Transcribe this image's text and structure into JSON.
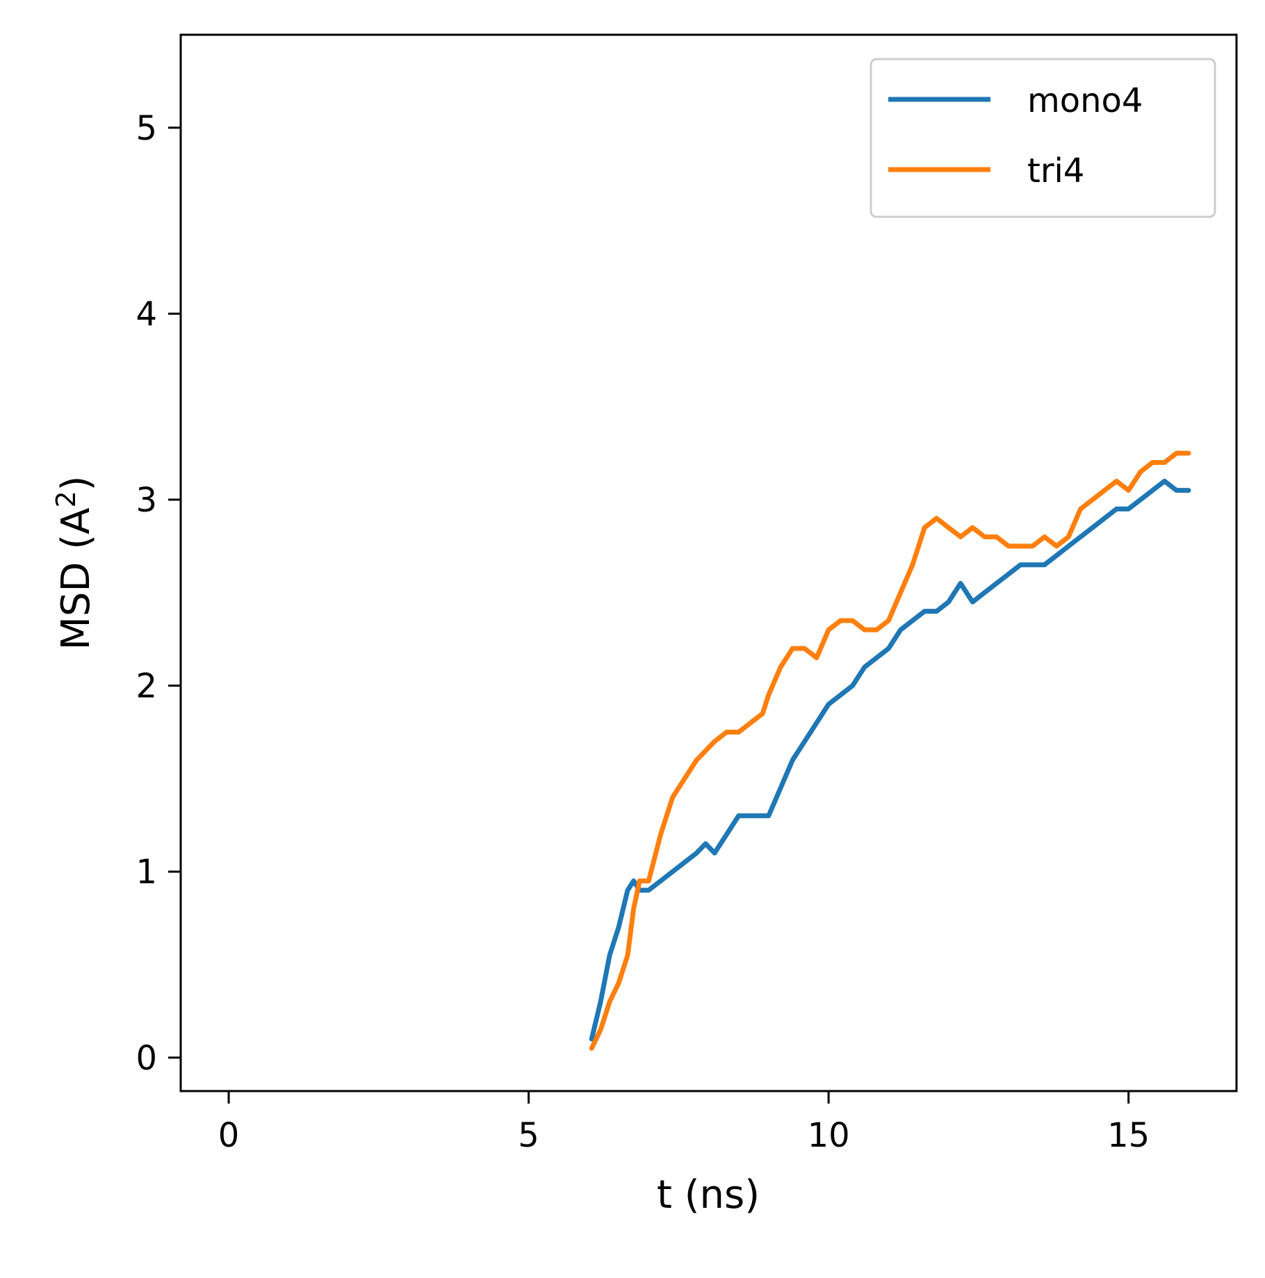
{
  "chart_data": {
    "type": "line",
    "title": "",
    "xlabel": "t (ns)",
    "ylabel": "MSD (A²)",
    "ylabel_parts": {
      "pre": "MSD (A",
      "sup": "2",
      "post": ")"
    },
    "xlim": [
      -0.8,
      16.8
    ],
    "ylim": [
      -0.18,
      5.5
    ],
    "xticks": [
      0,
      5,
      10,
      15
    ],
    "yticks": [
      0,
      1,
      2,
      3,
      4,
      5
    ],
    "xtick_labels": [
      "0",
      "5",
      "10",
      "15"
    ],
    "ytick_labels": [
      "0",
      "1",
      "2",
      "3",
      "4",
      "5"
    ],
    "grid": false,
    "legend_position": "upper right",
    "series": [
      {
        "name": "mono4",
        "color": "#1f77b4",
        "x": [
          6.05,
          6.2,
          6.35,
          6.5,
          6.65,
          6.75,
          6.85,
          7.0,
          7.2,
          7.4,
          7.6,
          7.8,
          7.95,
          8.1,
          8.3,
          8.5,
          8.7,
          8.9,
          9.0,
          9.2,
          9.4,
          9.6,
          9.8,
          10.0,
          10.2,
          10.4,
          10.6,
          10.8,
          11.0,
          11.2,
          11.4,
          11.6,
          11.8,
          12.0,
          12.2,
          12.4,
          12.6,
          12.8,
          13.0,
          13.2,
          13.4,
          13.6,
          13.8,
          14.0,
          14.2,
          14.4,
          14.6,
          14.8,
          15.0,
          15.2,
          15.4,
          15.6,
          15.8,
          16.0
        ],
        "y": [
          0.1,
          0.3,
          0.55,
          0.7,
          0.9,
          0.95,
          0.9,
          0.9,
          0.95,
          1.0,
          1.05,
          1.1,
          1.15,
          1.1,
          1.2,
          1.3,
          1.3,
          1.3,
          1.3,
          1.45,
          1.6,
          1.7,
          1.8,
          1.9,
          1.95,
          2.0,
          2.1,
          2.15,
          2.2,
          2.3,
          2.35,
          2.4,
          2.4,
          2.45,
          2.55,
          2.45,
          2.5,
          2.55,
          2.6,
          2.65,
          2.65,
          2.65,
          2.7,
          2.75,
          2.8,
          2.85,
          2.9,
          2.95,
          2.95,
          3.0,
          3.05,
          3.1,
          3.05,
          3.05
        ]
      },
      {
        "name": "tri4",
        "color": "#ff7f0e",
        "x": [
          6.05,
          6.2,
          6.35,
          6.5,
          6.65,
          6.75,
          6.85,
          7.0,
          7.2,
          7.4,
          7.6,
          7.8,
          7.95,
          8.1,
          8.3,
          8.5,
          8.7,
          8.9,
          9.0,
          9.2,
          9.4,
          9.6,
          9.8,
          10.0,
          10.2,
          10.4,
          10.6,
          10.8,
          11.0,
          11.2,
          11.4,
          11.6,
          11.8,
          12.0,
          12.2,
          12.4,
          12.6,
          12.8,
          13.0,
          13.2,
          13.4,
          13.6,
          13.8,
          14.0,
          14.2,
          14.4,
          14.6,
          14.8,
          15.0,
          15.2,
          15.4,
          15.6,
          15.8,
          16.0
        ],
        "y": [
          0.05,
          0.15,
          0.3,
          0.4,
          0.55,
          0.8,
          0.95,
          0.95,
          1.2,
          1.4,
          1.5,
          1.6,
          1.65,
          1.7,
          1.75,
          1.75,
          1.8,
          1.85,
          1.95,
          2.1,
          2.2,
          2.2,
          2.15,
          2.3,
          2.35,
          2.35,
          2.3,
          2.3,
          2.35,
          2.5,
          2.65,
          2.85,
          2.9,
          2.85,
          2.8,
          2.85,
          2.8,
          2.8,
          2.75,
          2.75,
          2.75,
          2.8,
          2.75,
          2.8,
          2.95,
          3.0,
          3.05,
          3.1,
          3.05,
          3.15,
          3.2,
          3.2,
          3.25,
          3.25
        ]
      }
    ]
  }
}
